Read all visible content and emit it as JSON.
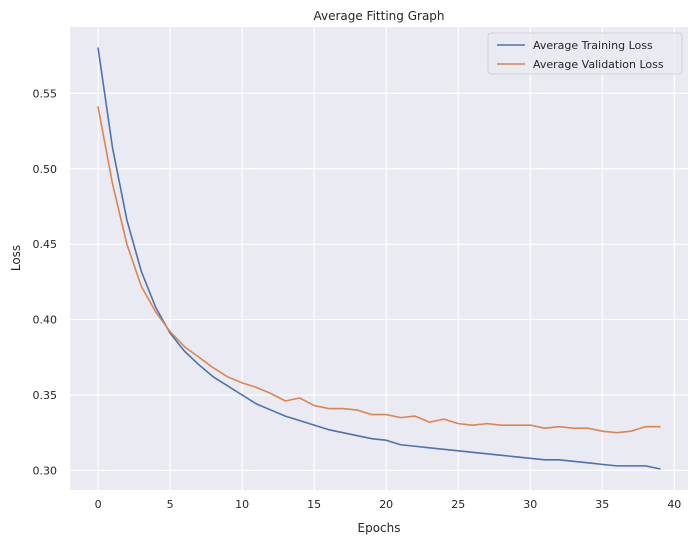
{
  "chart_data": {
    "type": "line",
    "title": "Average Fitting Graph",
    "xlabel": "Epochs",
    "ylabel": "Loss",
    "xlim": [
      -1.95,
      40.95
    ],
    "ylim": [
      0.287,
      0.594
    ],
    "xticks": [
      0,
      5,
      10,
      15,
      20,
      25,
      30,
      35,
      40
    ],
    "yticks": [
      0.3,
      0.35,
      0.4,
      0.45,
      0.5,
      0.55
    ],
    "ytick_labels": [
      "0.30",
      "0.35",
      "0.40",
      "0.45",
      "0.50",
      "0.55"
    ],
    "grid": true,
    "legend_position": "upper right",
    "x": [
      0,
      1,
      2,
      3,
      4,
      5,
      6,
      7,
      8,
      9,
      10,
      11,
      12,
      13,
      14,
      15,
      16,
      17,
      18,
      19,
      20,
      21,
      22,
      23,
      24,
      25,
      26,
      27,
      28,
      29,
      30,
      31,
      32,
      33,
      34,
      35,
      36,
      37,
      38,
      39
    ],
    "series": [
      {
        "name": "Average Training Loss",
        "color": "#4c72b0",
        "values": [
          0.58,
          0.514,
          0.466,
          0.432,
          0.408,
          0.391,
          0.379,
          0.37,
          0.362,
          0.356,
          0.35,
          0.344,
          0.34,
          0.336,
          0.333,
          0.33,
          0.327,
          0.325,
          0.323,
          0.321,
          0.32,
          0.317,
          0.316,
          0.315,
          0.314,
          0.313,
          0.312,
          0.311,
          0.31,
          0.309,
          0.308,
          0.307,
          0.307,
          0.306,
          0.305,
          0.304,
          0.303,
          0.303,
          0.303,
          0.301
        ]
      },
      {
        "name": "Average Validation Loss",
        "color": "#dd8452",
        "values": [
          0.541,
          0.49,
          0.45,
          0.422,
          0.405,
          0.392,
          0.382,
          0.375,
          0.368,
          0.362,
          0.358,
          0.355,
          0.351,
          0.346,
          0.348,
          0.343,
          0.341,
          0.341,
          0.34,
          0.337,
          0.337,
          0.335,
          0.336,
          0.332,
          0.334,
          0.331,
          0.33,
          0.331,
          0.33,
          0.33,
          0.33,
          0.328,
          0.329,
          0.328,
          0.328,
          0.326,
          0.325,
          0.326,
          0.329,
          0.329
        ]
      }
    ]
  }
}
